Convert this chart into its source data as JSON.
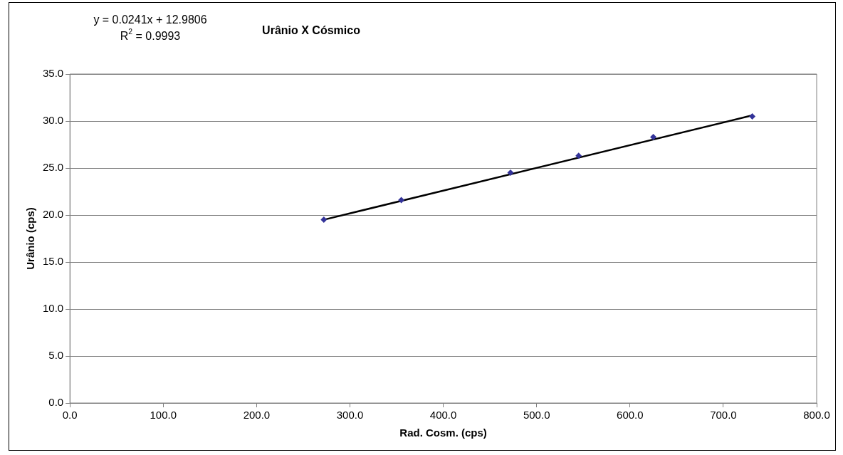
{
  "chart_data": {
    "type": "scatter",
    "title": "Urânio X Cósmico",
    "xlabel": "Rad. Cosm. (cps)",
    "ylabel": "Urânio (cps)",
    "annotations": [
      "y = 0.0241x + 12.9806",
      "R$^{2}$ = 0.9993"
    ],
    "series": [
      {
        "color": "#333399",
        "marker": "diamond",
        "x": [
          272,
          355,
          472,
          545,
          625,
          731
        ],
        "values": [
          19.5,
          21.6,
          24.5,
          26.3,
          28.3,
          30.5
        ]
      },
      {
        "type": "line",
        "color": "#000000",
        "line_style": "solid",
        "marker": "none",
        "x": [
          272,
          731
        ],
        "values": [
          19.5,
          30.6
        ]
      }
    ],
    "xlim": [
      0,
      800
    ],
    "ylim": [
      0,
      35
    ],
    "xticks": [
      {
        "value": 0,
        "label": "0.0"
      },
      {
        "value": 100,
        "label": "100.0"
      },
      {
        "value": 200,
        "label": "200.0"
      },
      {
        "value": 300,
        "label": "300.0"
      },
      {
        "value": 400,
        "label": "400.0"
      },
      {
        "value": 500,
        "label": "500.0"
      },
      {
        "value": 600,
        "label": "600.0"
      },
      {
        "value": 700,
        "label": "700.0"
      },
      {
        "value": 800,
        "label": "800.0"
      }
    ],
    "yticks": [
      {
        "value": 0,
        "label": "0.0"
      },
      {
        "value": 5,
        "label": "5.0"
      },
      {
        "value": 10,
        "label": "10.0"
      },
      {
        "value": 15,
        "label": "15.0"
      },
      {
        "value": 20,
        "label": "20.0"
      },
      {
        "value": 25,
        "label": "25.0"
      },
      {
        "value": 30,
        "label": "30.0"
      },
      {
        "value": 35,
        "label": "35.0"
      }
    ],
    "grid": "y",
    "legend": false
  }
}
